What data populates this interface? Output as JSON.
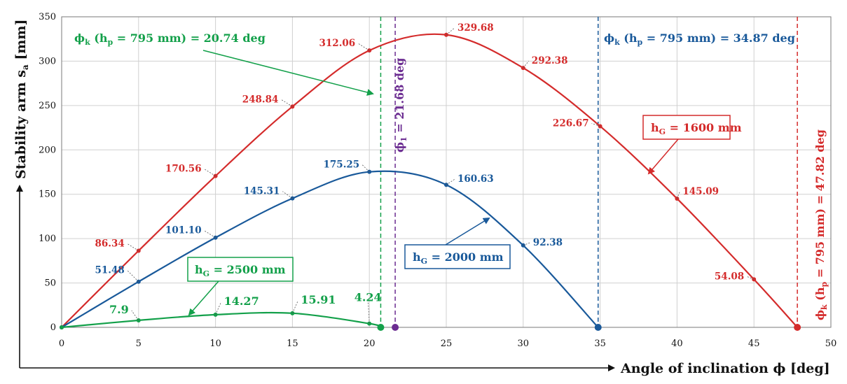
{
  "chart_data": {
    "type": "line",
    "xlabel": "Angle of inclination ϕ [deg]",
    "ylabel": "Stability arm s",
    "ylabel_sub": "a",
    "ylabel_unit": " [mm]",
    "xlim": [
      0,
      50
    ],
    "ylim": [
      0,
      350
    ],
    "xticks": [
      "0",
      "5",
      "10",
      "15",
      "20",
      "25",
      "30",
      "35",
      "40",
      "45",
      "50"
    ],
    "yticks": [
      "0",
      "50",
      "100",
      "150",
      "200",
      "250",
      "300",
      "350"
    ],
    "grid": true,
    "colors": {
      "red": "#d42b2b",
      "blue": "#19599a",
      "green": "#13a04a",
      "purple": "#6b2c91"
    },
    "series": [
      {
        "name": "hG = 1600 mm",
        "label_main": "h",
        "label_sub": "G",
        "label_rest": " = 1600 mm",
        "color": "#d42b2b",
        "x": [
          0,
          5,
          10,
          15,
          20,
          25,
          30,
          35,
          40,
          45,
          47.82
        ],
        "y": [
          0,
          86.34,
          170.56,
          248.84,
          312.06,
          329.68,
          292.38,
          226.67,
          145.09,
          54.08,
          0
        ],
        "labels": [
          "",
          "86.34",
          "170.56",
          "248.84",
          "312.06",
          "329.68",
          "292.38",
          "226.67",
          "145.09",
          "54.08",
          ""
        ]
      },
      {
        "name": "hG = 2000 mm",
        "label_main": "h",
        "label_sub": "G",
        "label_rest": " = 2000 mm",
        "color": "#19599a",
        "x": [
          0,
          5,
          10,
          15,
          20,
          25,
          30,
          34.87
        ],
        "y": [
          0,
          51.48,
          101.1,
          145.31,
          175.25,
          160.63,
          92.38,
          0
        ],
        "labels": [
          "",
          "51.48",
          "101.10",
          "145.31",
          "175.25",
          "160.63",
          "92.38",
          ""
        ]
      },
      {
        "name": "hG = 2500 mm",
        "label_main": "h",
        "label_sub": "G",
        "label_rest": " = 2500 mm",
        "color": "#13a04a",
        "x": [
          0,
          5,
          10,
          15,
          20,
          20.74
        ],
        "y": [
          0,
          7.9,
          14.27,
          15.91,
          4.24,
          0
        ],
        "labels": [
          "",
          "7.9",
          "14.27",
          "15.91",
          "4.24",
          ""
        ]
      }
    ],
    "vlines": [
      {
        "x": 20.74,
        "color": "#13a04a",
        "label": "ϕk (hp = 795 mm) = 20.74 deg"
      },
      {
        "x": 21.68,
        "color": "#6b2c91",
        "label": "ϕ1 = 21.68 deg"
      },
      {
        "x": 34.87,
        "color": "#19599a",
        "label": "ϕk (hp = 795 mm) = 34.87 deg"
      },
      {
        "x": 47.82,
        "color": "#d42b2b",
        "label": "ϕk (hp = 795 mm) = 47.82 deg"
      }
    ],
    "annotations": {
      "green_phi": {
        "a": "ϕ",
        "b": "k",
        "c": " (h",
        "d": "p",
        "e": " = 795 mm) = 20.74 deg"
      },
      "blue_phi": {
        "a": "ϕ",
        "b": "k",
        "c": " (h",
        "d": "p",
        "e": " = 795 mm) = 34.87 deg"
      },
      "red_phi": {
        "a": "ϕ",
        "b": "k",
        "c": " (h",
        "d": "p",
        "e": " = 795 mm) = 47.82 deg"
      },
      "purple_phi": {
        "a": "ϕ",
        "b": "1",
        "c": " = 21.68 deg"
      }
    }
  }
}
